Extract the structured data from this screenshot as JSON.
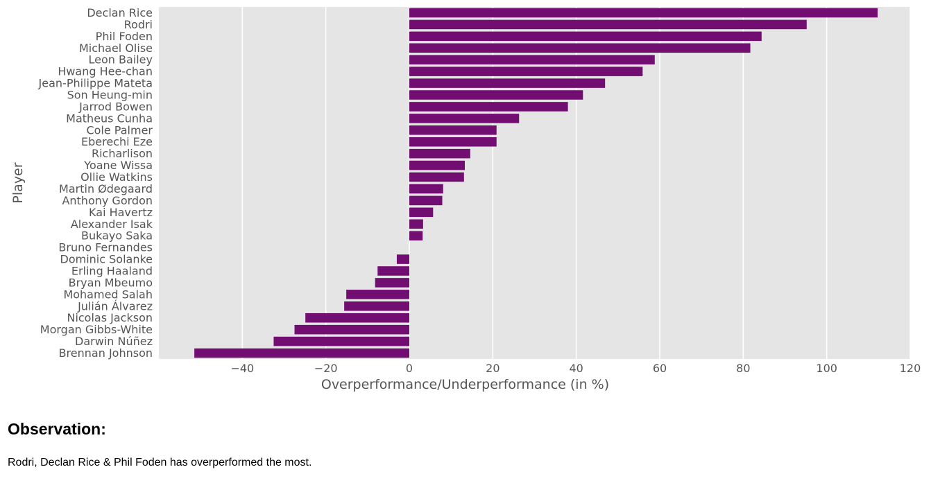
{
  "chart_data": {
    "type": "bar",
    "orientation": "horizontal",
    "ylabel": "Player",
    "xlabel": "Overperformance/Underperformance (in %)",
    "xlim": [
      -60,
      120
    ],
    "xticks": [
      -40,
      -20,
      0,
      20,
      40,
      60,
      80,
      100,
      120
    ],
    "xtick_labels": [
      "−40",
      "−20",
      "0",
      "20",
      "40",
      "60",
      "80",
      "100",
      "120"
    ],
    "grid": true,
    "bar_color": "#720d72",
    "background_color": "#e5e5e5",
    "grid_color": "#ffffff",
    "categories": [
      "Declan Rice",
      "Rodri",
      "Phil Foden",
      "Michael Olise",
      "Leon Bailey",
      "Hwang Hee-chan",
      "Jean-Philippe Mateta",
      "Son Heung-min",
      "Jarrod Bowen",
      "Matheus Cunha",
      "Cole Palmer",
      "Eberechi Eze",
      "Richarlison",
      "Yoane Wissa",
      "Ollie Watkins",
      "Martin Ødegaard",
      "Anthony Gordon",
      "Kai Havertz",
      "Alexander Isak",
      "Bukayo Saka",
      "Bruno Fernandes",
      "Dominic Solanke",
      "Erling Haaland",
      "Bryan Mbeumo",
      "Mohamed Salah",
      "Julián Álvarez",
      "Nicolas Jackson",
      "Morgan Gibbs-White",
      "Darwin Núñez",
      "Brennan Johnson"
    ],
    "values": [
      112.2,
      95.2,
      84.4,
      81.7,
      58.8,
      55.9,
      46.9,
      41.6,
      38.0,
      26.3,
      20.9,
      20.9,
      14.6,
      13.3,
      13.1,
      8.1,
      7.9,
      5.7,
      3.3,
      3.2,
      0,
      -3.0,
      -7.6,
      -8.2,
      -15.1,
      -15.6,
      -24.9,
      -27.5,
      -32.5,
      -51.5
    ]
  },
  "observation": {
    "heading": "Observation:",
    "text": "Rodri, Declan Rice & Phil Foden has overperformed the most."
  }
}
